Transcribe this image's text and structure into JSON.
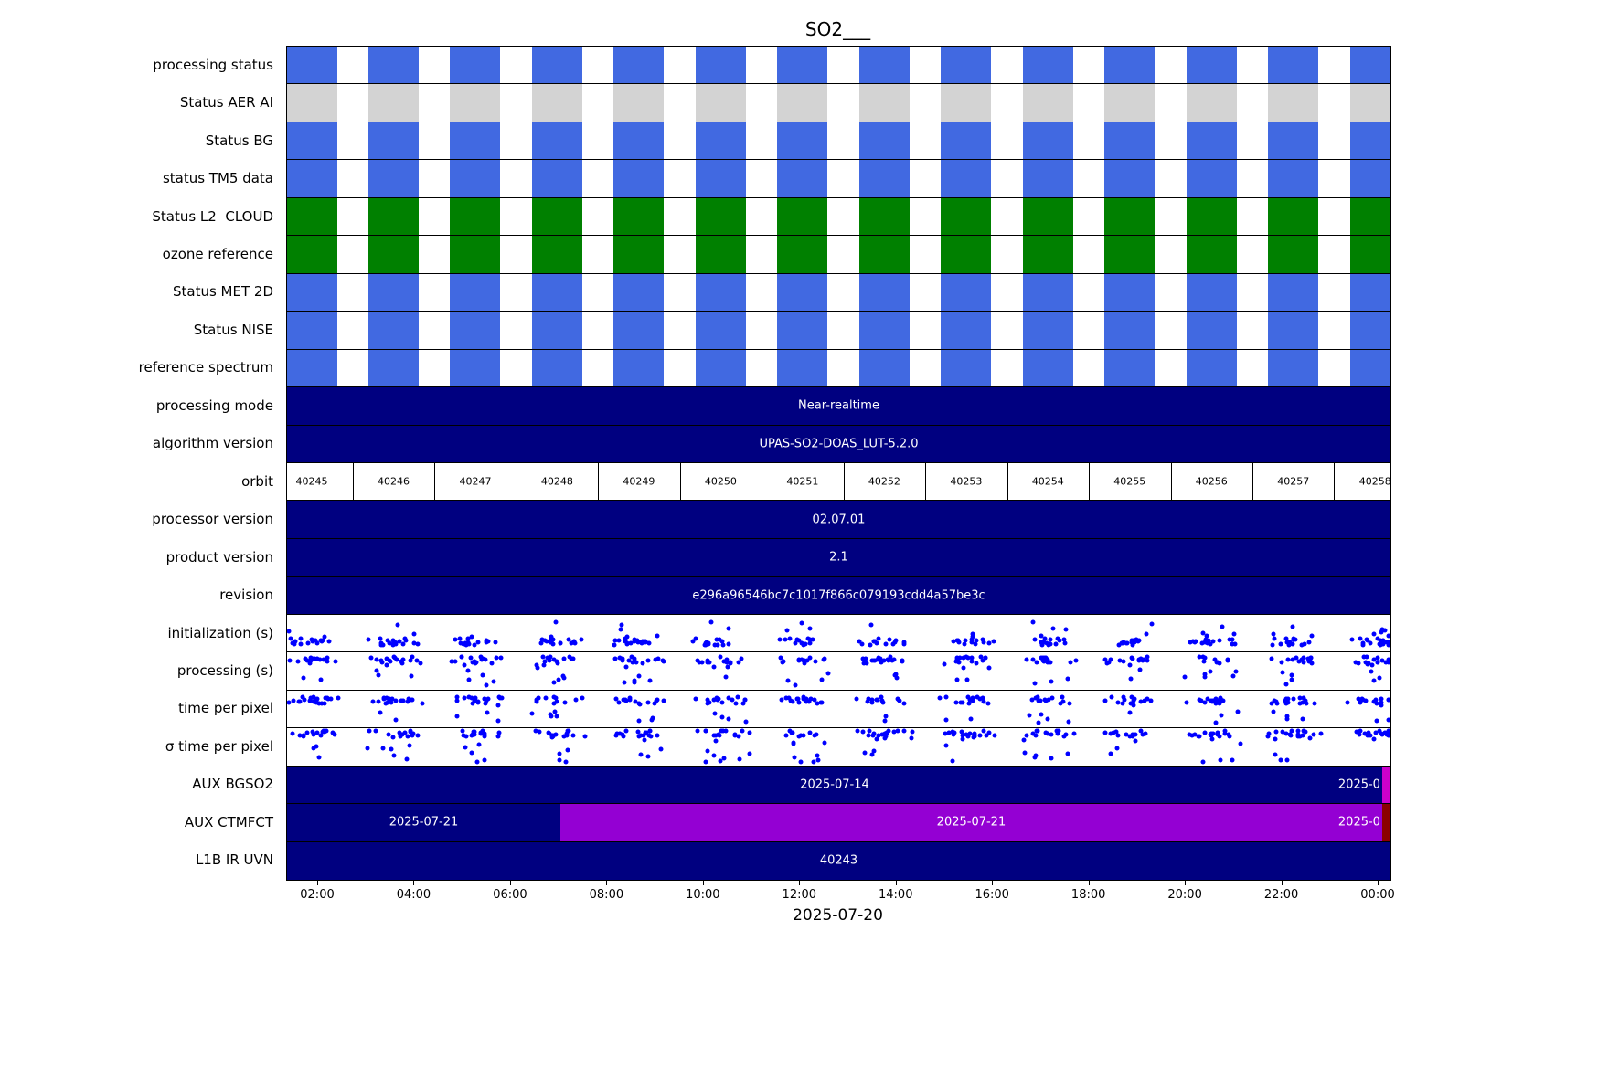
{
  "chart_data": {
    "type": "bar",
    "subtype": "status-timeline-gantt",
    "title": "SO2___",
    "dot_color": "#0000ff",
    "xaxis": {
      "label": "2025-07-20",
      "start_hour": 1.355,
      "end_hour": 24.246,
      "ticks": [
        {
          "hour": 2,
          "label": "02:00"
        },
        {
          "hour": 4,
          "label": "04:00"
        },
        {
          "hour": 6,
          "label": "06:00"
        },
        {
          "hour": 8,
          "label": "08:00"
        },
        {
          "hour": 10,
          "label": "10:00"
        },
        {
          "hour": 12,
          "label": "12:00"
        },
        {
          "hour": 14,
          "label": "14:00"
        },
        {
          "hour": 16,
          "label": "16:00"
        },
        {
          "hour": 18,
          "label": "18:00"
        },
        {
          "hour": 20,
          "label": "20:00"
        },
        {
          "hour": 22,
          "label": "22:00"
        },
        {
          "hour": 24,
          "label": "00:00"
        }
      ]
    },
    "orbits": {
      "numbers": [
        "40245",
        "40246",
        "40247",
        "40248",
        "40249",
        "40250",
        "40251",
        "40252",
        "40253",
        "40254",
        "40255",
        "40256",
        "40257",
        "40258"
      ],
      "first_center_hour": 1.867,
      "period_hours": 1.697,
      "block_halfwidth_hours": 0.522
    },
    "rows": [
      {
        "label": "processing status",
        "type": "blocks",
        "color": "#4169e1"
      },
      {
        "label": "Status AER AI",
        "type": "blocks",
        "color": "#d3d3d3"
      },
      {
        "label": "Status BG",
        "type": "blocks",
        "color": "#4169e1"
      },
      {
        "label": "status TM5 data",
        "type": "blocks",
        "color": "#4169e1"
      },
      {
        "label": "Status L2  CLOUD",
        "type": "blocks",
        "color": "#008000"
      },
      {
        "label": "ozone reference",
        "type": "blocks",
        "color": "#008000"
      },
      {
        "label": "Status MET 2D",
        "type": "blocks",
        "color": "#4169e1"
      },
      {
        "label": "Status NISE",
        "type": "blocks",
        "color": "#4169e1"
      },
      {
        "label": "reference spectrum",
        "type": "blocks",
        "color": "#4169e1"
      },
      {
        "label": "processing mode",
        "type": "bar",
        "segments": [
          {
            "start": 0,
            "end": 1,
            "color": "#000080",
            "label": "Near-realtime"
          }
        ]
      },
      {
        "label": "algorithm version",
        "type": "bar",
        "segments": [
          {
            "start": 0,
            "end": 1,
            "color": "#000080",
            "label": "UPAS-SO2-DOAS_LUT-5.2.0"
          }
        ]
      },
      {
        "label": "orbit",
        "type": "orbit"
      },
      {
        "label": "processor version",
        "type": "bar",
        "segments": [
          {
            "start": 0,
            "end": 1,
            "color": "#000080",
            "label": "02.07.01"
          }
        ]
      },
      {
        "label": "product version",
        "type": "bar",
        "segments": [
          {
            "start": 0,
            "end": 1,
            "color": "#000080",
            "label": "2.1"
          }
        ]
      },
      {
        "label": "revision",
        "type": "bar",
        "segments": [
          {
            "start": 0,
            "end": 1,
            "color": "#000080",
            "label": "e296a96546bc7c1017f866c079193cdd4a57be3c"
          }
        ]
      },
      {
        "label": "initialization (s)",
        "type": "scatter",
        "seed": 101,
        "band": 0.74,
        "outlier_dir": -1,
        "outlier_rate": 0.18,
        "outlier_max": 0.55
      },
      {
        "label": "processing (s)",
        "type": "scatter",
        "seed": 202,
        "band": 0.2,
        "outlier_dir": 1,
        "outlier_rate": 0.22,
        "outlier_max": 0.7
      },
      {
        "label": "time per pixel",
        "type": "scatter",
        "seed": 303,
        "band": 0.27,
        "outlier_dir": 1,
        "outlier_rate": 0.18,
        "outlier_max": 0.6
      },
      {
        "label": "σ time per pixel",
        "type": "scatter",
        "seed": 404,
        "band": 0.14,
        "outlier_dir": 1,
        "outlier_rate": 0.3,
        "outlier_max": 0.8
      },
      {
        "label": "AUX BGSO2",
        "type": "bar",
        "segments": [
          {
            "start": 0,
            "end": 0.9925,
            "color": "#000080",
            "label": "2025-07-14"
          },
          {
            "start": 0.9925,
            "end": 1,
            "color": "#cc00cc",
            "label": "2025-0",
            "label_align": "right"
          }
        ]
      },
      {
        "label": "AUX CTMFCT",
        "type": "bar",
        "segments": [
          {
            "start": 0,
            "end": 0.2477,
            "color": "#000080",
            "label": "2025-07-21"
          },
          {
            "start": 0.2477,
            "end": 0.9925,
            "color": "#9400d3",
            "label": "2025-07-21"
          },
          {
            "start": 0.9925,
            "end": 1,
            "color": "#8b0000",
            "label": "2025-0",
            "label_align": "right"
          }
        ]
      },
      {
        "label": "L1B IR UVN",
        "type": "bar",
        "segments": [
          {
            "start": 0,
            "end": 1,
            "color": "#000080",
            "label": "40243"
          }
        ]
      }
    ]
  }
}
